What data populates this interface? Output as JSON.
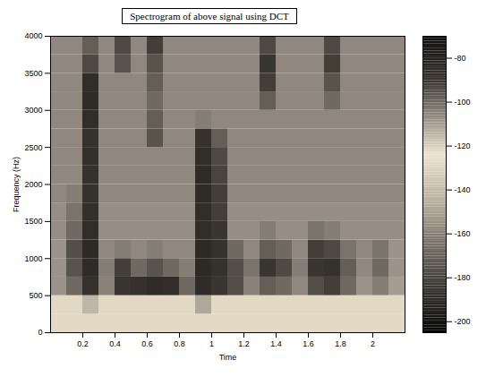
{
  "chart_data": {
    "type": "heatmap",
    "title": "Spectrogram of above signal using DCT",
    "x_label": "Time",
    "y_label": "Frequency (Hz)",
    "xlim": [
      0,
      2.2
    ],
    "xticks": [
      0.2,
      0.4,
      0.6,
      0.8,
      1,
      1.2,
      1.4,
      1.6,
      1.8,
      2
    ],
    "ylim": [
      0,
      4000
    ],
    "yticks": [
      0,
      500,
      1000,
      1500,
      2000,
      2500,
      3000,
      3500,
      4000
    ],
    "cells": {
      "x_edges": [
        0,
        0.1,
        0.2,
        0.3,
        0.4,
        0.5,
        0.6,
        0.7,
        0.8,
        0.9,
        1,
        1.1,
        1.2,
        1.3,
        1.4,
        1.5,
        1.6,
        1.7,
        1.8,
        1.9,
        2,
        2.1,
        2.2
      ],
      "y_edges": [
        0,
        250,
        500,
        750,
        1000,
        1250,
        1500,
        1750,
        2000,
        2250,
        2500,
        2750,
        3000,
        3250,
        3500,
        3750,
        4000
      ],
      "values": [
        [
          -128,
          -128,
          -128,
          -128,
          -128,
          -128,
          -128,
          -128,
          -128,
          -128,
          -128,
          -128,
          -128,
          -128,
          -128,
          -128,
          -128,
          -128,
          -128,
          -128,
          -128,
          -128
        ],
        [
          -122,
          -122,
          -115,
          -122,
          -122,
          -122,
          -122,
          -122,
          -122,
          -112,
          -122,
          -122,
          -122,
          -122,
          -122,
          -122,
          -122,
          -122,
          -122,
          -122,
          -122,
          -122
        ],
        [
          -108,
          -100,
          -88,
          -105,
          -90,
          -88,
          -85,
          -86,
          -100,
          -85,
          -90,
          -95,
          -105,
          -98,
          -100,
          -106,
          -95,
          -92,
          -100,
          -108,
          -104,
          -110
        ],
        [
          -108,
          -96,
          -85,
          -104,
          -92,
          -100,
          -96,
          -100,
          -104,
          -84,
          -88,
          -95,
          -102,
          -90,
          -94,
          -104,
          -90,
          -88,
          -98,
          -106,
          -100,
          -108
        ],
        [
          -108,
          -95,
          -84,
          -106,
          -104,
          -106,
          -104,
          -106,
          -106,
          -84,
          -88,
          -100,
          -106,
          -98,
          -100,
          -106,
          -92,
          -94,
          -102,
          -106,
          -102,
          -108
        ],
        [
          -107,
          -100,
          -86,
          -107,
          -107,
          -107,
          -107,
          -107,
          -107,
          -86,
          -90,
          -107,
          -107,
          -104,
          -107,
          -107,
          -102,
          -104,
          -107,
          -107,
          -107,
          -107
        ],
        [
          -107,
          -102,
          -87,
          -107,
          -107,
          -107,
          -107,
          -107,
          -107,
          -86,
          -92,
          -107,
          -107,
          -107,
          -107,
          -107,
          -107,
          -107,
          -107,
          -107,
          -107,
          -107
        ],
        [
          -106,
          -104,
          -88,
          -106,
          -106,
          -106,
          -106,
          -106,
          -106,
          -85,
          -92,
          -106,
          -106,
          -106,
          -106,
          -106,
          -106,
          -106,
          -106,
          -106,
          -106,
          -106
        ],
        [
          -106,
          -106,
          -88,
          -106,
          -106,
          -106,
          -106,
          -106,
          -106,
          -85,
          -93,
          -106,
          -106,
          -106,
          -106,
          -106,
          -106,
          -106,
          -106,
          -106,
          -106,
          -106
        ],
        [
          -106,
          -106,
          -87,
          -106,
          -106,
          -106,
          -106,
          -106,
          -106,
          -86,
          -94,
          -106,
          -106,
          -106,
          -106,
          -106,
          -106,
          -106,
          -106,
          -106,
          -106,
          -106
        ],
        [
          -106,
          -106,
          -88,
          -106,
          -106,
          -106,
          -96,
          -106,
          -106,
          -88,
          -98,
          -106,
          -106,
          -106,
          -106,
          -106,
          -106,
          -106,
          -106,
          -106,
          -106,
          -106
        ],
        [
          -106,
          -106,
          -86,
          -106,
          -106,
          -106,
          -98,
          -106,
          -106,
          -104,
          -106,
          -106,
          -106,
          -106,
          -106,
          -106,
          -106,
          -106,
          -106,
          -106,
          -106,
          -106
        ],
        [
          -106,
          -106,
          -85,
          -106,
          -106,
          -106,
          -100,
          -106,
          -106,
          -106,
          -106,
          -106,
          -106,
          -98,
          -106,
          -106,
          -106,
          -100,
          -106,
          -106,
          -106,
          -106
        ],
        [
          -106,
          -106,
          -86,
          -106,
          -106,
          -106,
          -98,
          -106,
          -106,
          -106,
          -106,
          -106,
          -106,
          -92,
          -106,
          -106,
          -106,
          -96,
          -106,
          -106,
          -106,
          -106
        ],
        [
          -106,
          -106,
          -94,
          -106,
          -96,
          -106,
          -96,
          -106,
          -106,
          -106,
          -106,
          -106,
          -106,
          -90,
          -106,
          -106,
          -106,
          -92,
          -106,
          -106,
          -106,
          -106
        ],
        [
          -106,
          -106,
          -98,
          -106,
          -94,
          -106,
          -92,
          -106,
          -106,
          -106,
          -106,
          -106,
          -106,
          -94,
          -106,
          -106,
          -106,
          -94,
          -106,
          -106,
          -106,
          -106
        ]
      ]
    },
    "colorbar": {
      "range": [
        -205,
        -70
      ],
      "ticks": [
        -200,
        -180,
        -160,
        -140,
        -120,
        -100,
        -80
      ]
    }
  }
}
